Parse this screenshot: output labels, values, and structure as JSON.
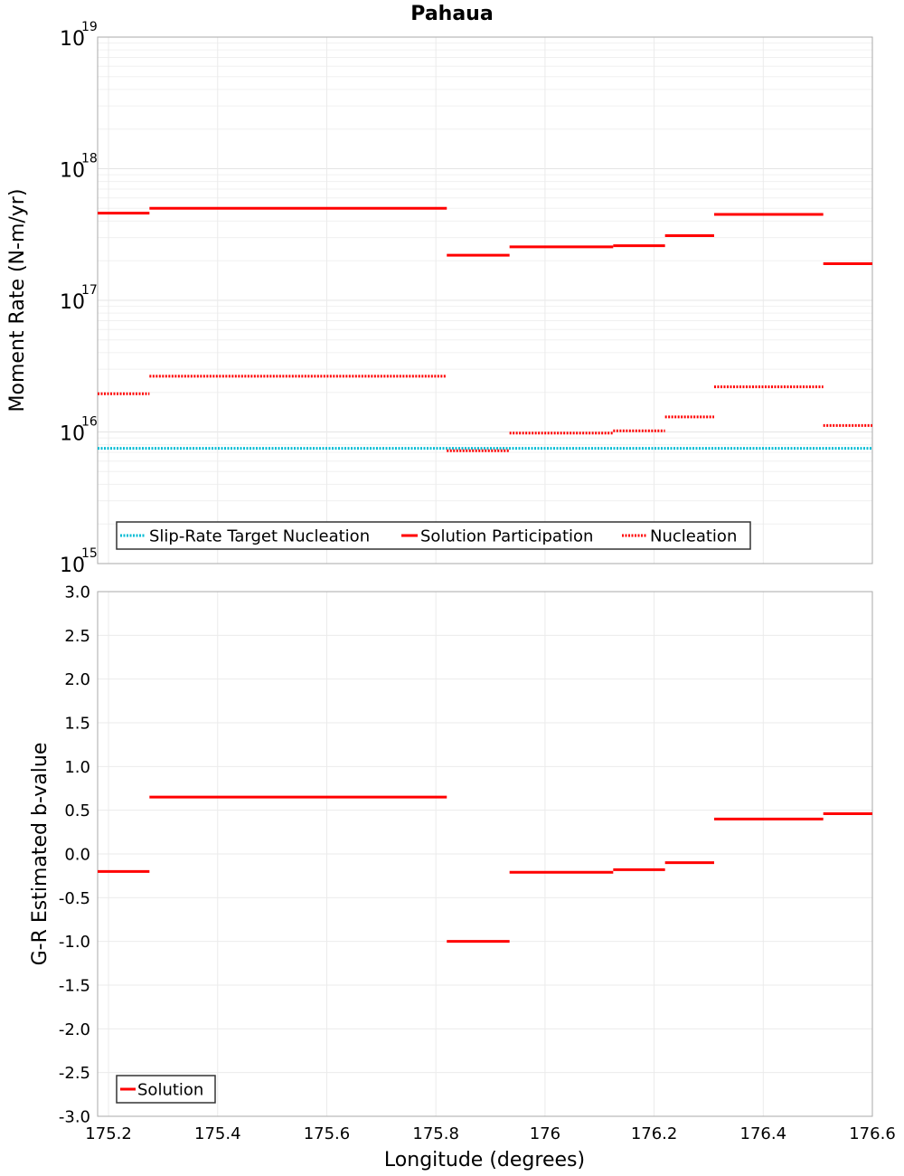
{
  "chart_data": [
    {
      "type": "line",
      "title": "Pahaua",
      "xlabel": "",
      "ylabel": "Moment Rate (N-m/yr)",
      "yscale": "log",
      "xlim": [
        175.18,
        176.6
      ],
      "ylim": [
        1000000000000000.0,
        1e+19
      ],
      "y_ticks": [
        {
          "base": "10",
          "exp": "15"
        },
        {
          "base": "10",
          "exp": "16"
        },
        {
          "base": "10",
          "exp": "17"
        },
        {
          "base": "10",
          "exp": "18"
        },
        {
          "base": "10",
          "exp": "19"
        }
      ],
      "grid": true,
      "legend_position": "bottom-left",
      "legend": [
        "Slip-Rate Target Nucleation",
        "Solution Participation",
        "Nucleation"
      ],
      "series": [
        {
          "name": "Slip-Rate Target Nucleation",
          "color": "#00bcd4",
          "style": "dotted",
          "segments": [
            {
              "x0": 175.18,
              "x1": 176.6,
              "y": 7500000000000000.0
            }
          ]
        },
        {
          "name": "Solution Participation",
          "color": "#ff0000",
          "style": "solid",
          "segments": [
            {
              "x0": 175.18,
              "x1": 175.275,
              "y": 4.6e+17
            },
            {
              "x0": 175.275,
              "x1": 175.82,
              "y": 5e+17
            },
            {
              "x0": 175.82,
              "x1": 175.935,
              "y": 2.2e+17
            },
            {
              "x0": 175.935,
              "x1": 176.125,
              "y": 2.55e+17
            },
            {
              "x0": 176.125,
              "x1": 176.22,
              "y": 2.6e+17
            },
            {
              "x0": 176.22,
              "x1": 176.31,
              "y": 3.1e+17
            },
            {
              "x0": 176.31,
              "x1": 176.51,
              "y": 4.5e+17
            },
            {
              "x0": 176.51,
              "x1": 176.6,
              "y": 1.9e+17
            }
          ]
        },
        {
          "name": "Nucleation",
          "color": "#ff0000",
          "style": "dotted",
          "segments": [
            {
              "x0": 175.18,
              "x1": 175.275,
              "y": 1.95e+16
            },
            {
              "x0": 175.275,
              "x1": 175.82,
              "y": 2.65e+16
            },
            {
              "x0": 175.82,
              "x1": 175.935,
              "y": 7200000000000000.0
            },
            {
              "x0": 175.935,
              "x1": 176.125,
              "y": 9800000000000000.0
            },
            {
              "x0": 176.125,
              "x1": 176.22,
              "y": 1.02e+16
            },
            {
              "x0": 176.22,
              "x1": 176.31,
              "y": 1.3e+16
            },
            {
              "x0": 176.31,
              "x1": 176.51,
              "y": 2.2e+16
            },
            {
              "x0": 176.51,
              "x1": 176.6,
              "y": 1.12e+16
            }
          ]
        }
      ]
    },
    {
      "type": "line",
      "title": "",
      "xlabel": "Longitude (degrees)",
      "ylabel": "G-R Estimated b-value",
      "xlim": [
        175.18,
        176.6
      ],
      "ylim": [
        -3.0,
        3.0
      ],
      "x_ticks": [
        "175.2",
        "175.4",
        "175.6",
        "175.8",
        "176",
        "176.2",
        "176.4",
        "176.6"
      ],
      "x_tick_values": [
        175.2,
        175.4,
        175.6,
        175.8,
        176.0,
        176.2,
        176.4,
        176.6
      ],
      "y_ticks": [
        "3.0",
        "2.5",
        "2.0",
        "1.5",
        "1.0",
        "0.5",
        "0.0",
        "-0.5",
        "-1.0",
        "-1.5",
        "-2.0",
        "-2.5",
        "-3.0"
      ],
      "y_tick_values": [
        3.0,
        2.5,
        2.0,
        1.5,
        1.0,
        0.5,
        0.0,
        -0.5,
        -1.0,
        -1.5,
        -2.0,
        -2.5,
        -3.0
      ],
      "grid": true,
      "legend_position": "bottom-left",
      "legend": [
        "Solution"
      ],
      "series": [
        {
          "name": "Solution",
          "color": "#ff0000",
          "style": "solid",
          "segments": [
            {
              "x0": 175.18,
              "x1": 175.275,
              "y": -0.2
            },
            {
              "x0": 175.275,
              "x1": 175.82,
              "y": 0.65
            },
            {
              "x0": 175.82,
              "x1": 175.935,
              "y": -1.0
            },
            {
              "x0": 175.935,
              "x1": 176.125,
              "y": -0.21
            },
            {
              "x0": 176.125,
              "x1": 176.22,
              "y": -0.18
            },
            {
              "x0": 176.22,
              "x1": 176.31,
              "y": -0.1
            },
            {
              "x0": 176.31,
              "x1": 176.51,
              "y": 0.4
            },
            {
              "x0": 176.51,
              "x1": 176.6,
              "y": 0.46
            }
          ]
        }
      ]
    }
  ]
}
